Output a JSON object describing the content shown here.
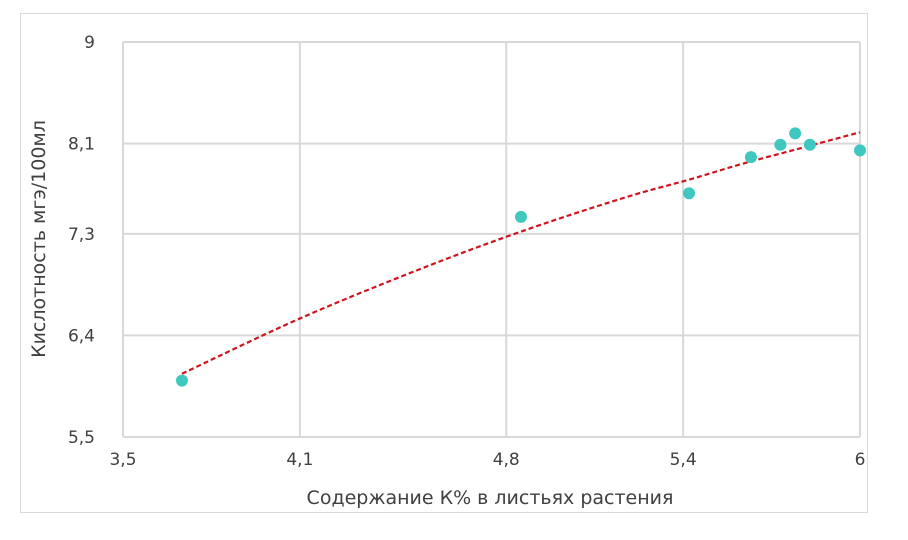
{
  "chart_data": {
    "type": "scatter",
    "xlabel": "Содержание К% в листьях растения",
    "ylabel": "Кислотность  мгэ/100мл",
    "xlim": [
      3.5,
      6.0
    ],
    "ylim": [
      5.5,
      9.0
    ],
    "x_ticks": [
      3.5,
      4.1,
      4.8,
      5.4,
      6.0
    ],
    "x_tick_labels": [
      "3,5",
      "4,1",
      "4,8",
      "5,4",
      "6"
    ],
    "y_ticks": [
      5.5,
      6.4,
      7.3,
      8.1,
      9.0
    ],
    "y_tick_labels": [
      "5,5",
      "6,4",
      "7,3",
      "8,1",
      "9"
    ],
    "grid": true,
    "points": [
      {
        "x": 3.7,
        "y": 6.0
      },
      {
        "x": 4.85,
        "y": 7.45
      },
      {
        "x": 5.42,
        "y": 7.66
      },
      {
        "x": 5.63,
        "y": 7.98
      },
      {
        "x": 5.73,
        "y": 8.09
      },
      {
        "x": 5.78,
        "y": 8.19
      },
      {
        "x": 5.83,
        "y": 8.09
      },
      {
        "x": 6.0,
        "y": 8.04
      }
    ],
    "trendline": {
      "type": "polynomial",
      "x_start": 3.7,
      "x_end": 6.0,
      "points": [
        {
          "x": 3.7,
          "y": 6.06
        },
        {
          "x": 4.1,
          "y": 6.55
        },
        {
          "x": 4.5,
          "y": 6.98
        },
        {
          "x": 4.85,
          "y": 7.32
        },
        {
          "x": 5.2,
          "y": 7.62
        },
        {
          "x": 5.42,
          "y": 7.78
        },
        {
          "x": 5.6,
          "y": 7.92
        },
        {
          "x": 5.8,
          "y": 8.06
        },
        {
          "x": 6.0,
          "y": 8.2
        }
      ]
    },
    "colors": {
      "points": "#3fc8c0",
      "trendline": "#d0141e",
      "grid": "#d9d9d9",
      "text": "#404040"
    }
  }
}
